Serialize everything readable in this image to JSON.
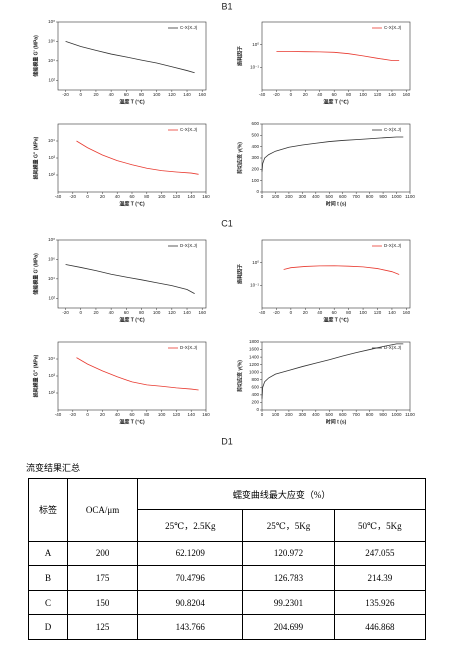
{
  "document": {
    "section_labels": [
      "B1",
      "C1",
      "D1"
    ],
    "table_title": "流变结果汇总",
    "table": {
      "header": [
        "标签",
        "OCA/μm",
        "蠕变曲线最大应变（%）"
      ],
      "subheader": [
        "25℃，2.5Kg",
        "25℃，5Kg",
        "50℃，5Kg"
      ],
      "rows": [
        [
          "A",
          200,
          62.1209,
          120.972,
          247.055
        ],
        [
          "B",
          175,
          70.4796,
          126.783,
          214.39
        ],
        [
          "C",
          150,
          90.8204,
          99.2301,
          135.926
        ],
        [
          "D",
          125,
          143.766,
          204.699,
          446.868
        ]
      ]
    }
  },
  "chart_data": [
    {
      "type": "line",
      "xlabel": "温度 T (℃)",
      "ylabel": "储能模量 G' (MPa)",
      "log_y": true,
      "xlim": [
        -30,
        165
      ],
      "xticks": [
        -20,
        0,
        20,
        40,
        60,
        80,
        100,
        120,
        140,
        160
      ],
      "ylim": [
        10,
        100000000
      ],
      "yticks": [
        {
          "value": 100,
          "label": "10²"
        },
        {
          "value": 10000,
          "label": "10⁴"
        },
        {
          "value": 1000000,
          "label": "10⁶"
        },
        {
          "value": 100000000,
          "label": "10⁸"
        }
      ],
      "series": [
        {
          "name": "C-X(X.J)",
          "color": "#333333",
          "x": [
            -20,
            0,
            20,
            40,
            60,
            80,
            100,
            120,
            140,
            150
          ],
          "values": [
            1000000,
            300000,
            120000,
            50000,
            25000,
            12000,
            6000,
            2500,
            1000,
            600
          ]
        }
      ]
    },
    {
      "type": "line",
      "xlabel": "温度 T (℃)",
      "ylabel": "损耗因子",
      "log_y": true,
      "xlim": [
        -40,
        165
      ],
      "xticks": [
        -40,
        -20,
        0,
        20,
        40,
        60,
        80,
        100,
        120,
        140,
        160
      ],
      "ylim": [
        0.01,
        10
      ],
      "yticks": [
        {
          "value": 0.1,
          "label": "10⁻¹"
        },
        {
          "value": 1,
          "label": "10⁰"
        }
      ],
      "series": [
        {
          "name": "C-X(X.J)",
          "color": "#e8392f",
          "x": [
            -20,
            0,
            20,
            40,
            60,
            80,
            100,
            120,
            140,
            150
          ],
          "values": [
            0.5,
            0.5,
            0.49,
            0.48,
            0.46,
            0.4,
            0.32,
            0.25,
            0.2,
            0.2
          ]
        }
      ]
    },
    {
      "type": "line",
      "xlabel": "温度 T (℃)",
      "ylabel": "损耗模量 G'' (MPa)",
      "log_y": true,
      "xlim": [
        -40,
        160
      ],
      "xticks": [
        -40,
        -20,
        0,
        20,
        40,
        60,
        80,
        100,
        120,
        140,
        160
      ],
      "ylim": [
        10,
        100000
      ],
      "yticks": [
        {
          "value": 100,
          "label": "10²"
        },
        {
          "value": 1000,
          "label": "10³"
        },
        {
          "value": 10000,
          "label": "10⁴"
        }
      ],
      "series": [
        {
          "name": "C-X(X.J)",
          "color": "#e8392f",
          "x": [
            -15,
            0,
            20,
            40,
            60,
            80,
            100,
            120,
            140,
            150
          ],
          "values": [
            10000,
            4000,
            1500,
            700,
            400,
            250,
            180,
            150,
            130,
            110
          ]
        }
      ]
    },
    {
      "type": "line",
      "xlabel": "时间 t (s)",
      "ylabel": "剪切应变 γ(%)",
      "log_y": false,
      "xlim": [
        0,
        1100
      ],
      "xticks": [
        0,
        100,
        200,
        300,
        400,
        500,
        600,
        700,
        800,
        900,
        1000,
        1100
      ],
      "ylim": [
        0,
        600
      ],
      "yticks": [
        0,
        100,
        200,
        300,
        400,
        500,
        600
      ],
      "series": [
        {
          "name": "C-X(X.J)",
          "color": "#333333",
          "x": [
            0,
            5,
            20,
            50,
            100,
            200,
            300,
            400,
            500,
            600,
            700,
            800,
            900,
            1000,
            1050
          ],
          "values": [
            180,
            250,
            300,
            330,
            360,
            395,
            415,
            430,
            445,
            455,
            462,
            470,
            478,
            485,
            485
          ]
        }
      ]
    },
    {
      "type": "line",
      "xlabel": "温度 T (℃)",
      "ylabel": "储能模量 G' (MPa)",
      "log_y": true,
      "xlim": [
        -30,
        165
      ],
      "xticks": [
        -20,
        0,
        20,
        40,
        60,
        80,
        100,
        120,
        140,
        160
      ],
      "ylim": [
        10,
        100000000
      ],
      "yticks": [
        {
          "value": 100,
          "label": "10²"
        },
        {
          "value": 10000,
          "label": "10⁴"
        },
        {
          "value": 1000000,
          "label": "10⁶"
        },
        {
          "value": 100000000,
          "label": "10⁸"
        }
      ],
      "series": [
        {
          "name": "D-X(X.J)",
          "color": "#333333",
          "x": [
            -20,
            0,
            20,
            40,
            60,
            80,
            100,
            120,
            140,
            150
          ],
          "values": [
            300000,
            150000,
            70000,
            30000,
            15000,
            8000,
            4000,
            2000,
            800,
            300
          ]
        }
      ]
    },
    {
      "type": "line",
      "xlabel": "温度 T (℃)",
      "ylabel": "损耗因子",
      "log_y": true,
      "xlim": [
        -40,
        165
      ],
      "xticks": [
        -40,
        -20,
        0,
        20,
        40,
        60,
        80,
        100,
        120,
        140,
        160
      ],
      "ylim": [
        0.01,
        10
      ],
      "yticks": [
        {
          "value": 0.1,
          "label": "10⁻¹"
        },
        {
          "value": 1,
          "label": "10⁰"
        }
      ],
      "series": [
        {
          "name": "D-X(X.J)",
          "color": "#e8392f",
          "x": [
            -10,
            0,
            20,
            40,
            60,
            80,
            100,
            120,
            140,
            150
          ],
          "values": [
            0.5,
            0.6,
            0.68,
            0.72,
            0.73,
            0.7,
            0.65,
            0.55,
            0.4,
            0.3
          ]
        }
      ]
    },
    {
      "type": "line",
      "xlabel": "温度 T (℃)",
      "ylabel": "损耗模量 G'' (MPa)",
      "log_y": true,
      "xlim": [
        -40,
        160
      ],
      "xticks": [
        -40,
        -20,
        0,
        20,
        40,
        60,
        80,
        100,
        120,
        140,
        160
      ],
      "ylim": [
        10,
        100000
      ],
      "yticks": [
        {
          "value": 100,
          "label": "10²"
        },
        {
          "value": 1000,
          "label": "10³"
        },
        {
          "value": 10000,
          "label": "10⁴"
        }
      ],
      "series": [
        {
          "name": "D-X(X.J)",
          "color": "#e8392f",
          "x": [
            -15,
            0,
            20,
            40,
            60,
            80,
            100,
            120,
            140,
            150
          ],
          "values": [
            12000,
            5000,
            2000,
            900,
            450,
            300,
            250,
            200,
            170,
            150
          ]
        }
      ]
    },
    {
      "type": "line",
      "xlabel": "时间 t (s)",
      "ylabel": "剪切应变 γ(%)",
      "log_y": false,
      "xlim": [
        0,
        1100
      ],
      "xticks": [
        0,
        100,
        200,
        300,
        400,
        500,
        600,
        700,
        800,
        900,
        1000,
        1100
      ],
      "ylim": [
        0,
        1800
      ],
      "yticks": [
        0,
        200,
        400,
        600,
        800,
        1000,
        1200,
        1400,
        1600,
        1800
      ],
      "series": [
        {
          "name": "D-X(X.J)",
          "color": "#333333",
          "x": [
            0,
            5,
            20,
            50,
            100,
            200,
            300,
            400,
            500,
            600,
            700,
            800,
            900,
            1000,
            1050
          ],
          "values": [
            300,
            600,
            750,
            850,
            950,
            1050,
            1150,
            1240,
            1330,
            1430,
            1520,
            1600,
            1680,
            1750,
            1750
          ]
        }
      ]
    }
  ]
}
